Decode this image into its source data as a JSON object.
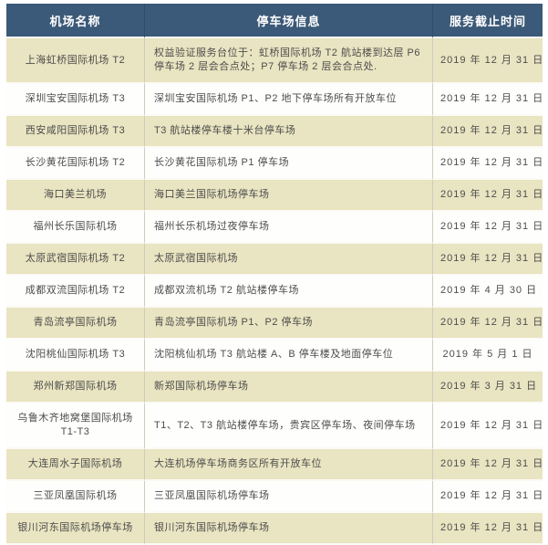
{
  "table": {
    "headers": [
      "机场名称",
      "停车场信息",
      "服务截止时间"
    ],
    "rows": [
      {
        "airport": "上海虹桥国际机场 T2",
        "parking": "权益验证服务台位于：虹桥国际机场 T2 航站楼到达层 P6 停车场 2 层会合点处；P7 停车场 2 层会合点处.",
        "deadline": "2019 年 12 月 31 日"
      },
      {
        "airport": "深圳宝安国际机场 T3",
        "parking": "深圳宝安国际机场 P1、P2 地下停车场所有开放车位",
        "deadline": "2019 年 12 月 31 日"
      },
      {
        "airport": "西安咸阳国际机场 T3",
        "parking": "T3 航站楼停车楼十米台停车场",
        "deadline": "2019 年 12 月 31 日"
      },
      {
        "airport": "长沙黄花国际机场 T2",
        "parking": "长沙黄花国际机场 P1 停车场",
        "deadline": "2019 年 12 月 31 日"
      },
      {
        "airport": "海口美兰机场",
        "parking": "海口美兰国际机场停车场",
        "deadline": "2019 年 12 月 31 日"
      },
      {
        "airport": "福州长乐国际机场",
        "parking": "福州长乐机场过夜停车场",
        "deadline": "2019 年 12 月 31 日"
      },
      {
        "airport": "太原武宿国际机场 T2",
        "parking": "太原武宿国际机场",
        "deadline": "2019 年 12 月 31 日"
      },
      {
        "airport": "成都双流国际机场 T2",
        "parking": "成都双流机场 T2 航站楼停车场",
        "deadline": "2019 年 4 月 30 日"
      },
      {
        "airport": "青岛流亭国际机场",
        "parking": "青岛流亭国际机场 P1、P2 停车场",
        "deadline": "2019 年 12 月 31 日"
      },
      {
        "airport": "沈阳桃仙国际机场 T3",
        "parking": "沈阳桃仙机场 T3 航站楼 A、B 停车楼及地面停车位",
        "deadline": "2019 年 5 月 1 日"
      },
      {
        "airport": "郑州新郑国际机场",
        "parking": "新郑国际机场停车场",
        "deadline": "2019 年 3 月 31 日"
      },
      {
        "airport": "乌鲁木齐地窝堡国际机场 T1-T3",
        "parking": "T1、T2、T3 航站楼停车场，贵宾区停车场、夜间停车场",
        "deadline": "2019 年 12 月 31 日"
      },
      {
        "airport": "大连周水子国际机场",
        "parking": "大连机场停车场商务区所有开放车位",
        "deadline": "2019 年 12 月 31 日"
      },
      {
        "airport": "三亚凤凰国际机场",
        "parking": "三亚凤凰国际机场停车场",
        "deadline": "2019 年 12 月 31 日"
      },
      {
        "airport": "银川河东国际机场停车场",
        "parking": "银川河东国际机场停车场",
        "deadline": "2019 年 12 月 31 日"
      }
    ]
  },
  "colors": {
    "header_bg": "#3b5978",
    "header_text": "#ffffff",
    "row_alt_bg": "#e9e4c1",
    "row_bg": "#fefefc",
    "body_text": "#4d4d4d"
  }
}
